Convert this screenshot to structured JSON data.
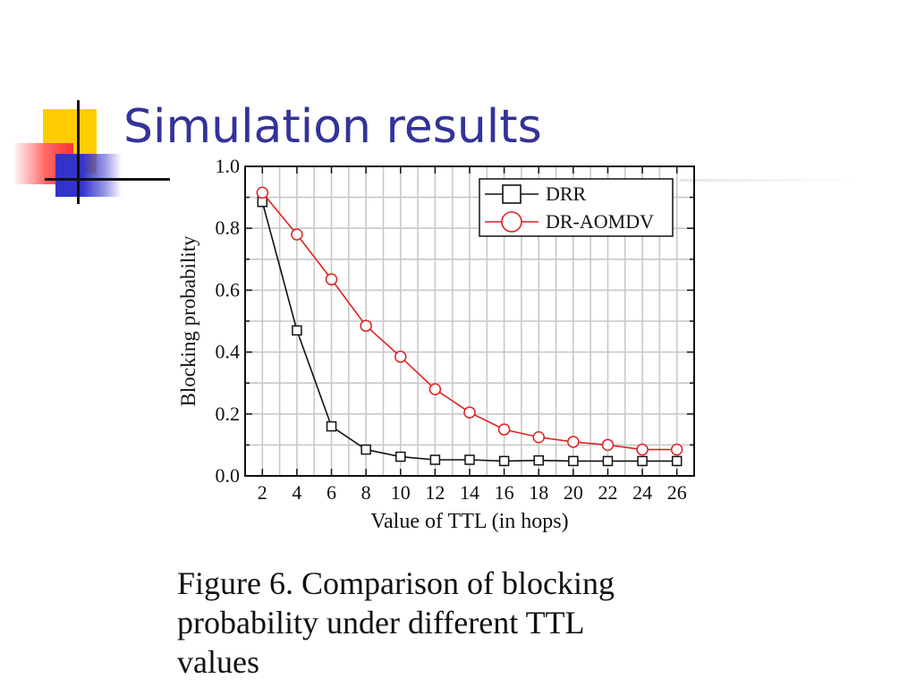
{
  "slide": {
    "title": "Simulation results",
    "caption_lines": [
      "Figure 6. Comparison of blocking",
      "probability under different TTL",
      "values"
    ]
  },
  "colors": {
    "title": "#333399",
    "accent_yellow": "#ffcc00",
    "accent_red": "#ff3333",
    "accent_blue": "#3333cc",
    "drr": "#111111",
    "dr_aomdv": "#e02020",
    "grid": "#c8c8c8"
  },
  "chart_data": {
    "type": "line",
    "title": "",
    "xlabel": "Value of TTL (in hops)",
    "ylabel": "Blocking probability",
    "x": [
      2,
      4,
      6,
      8,
      10,
      12,
      14,
      16,
      18,
      20,
      22,
      24,
      26
    ],
    "xlim": [
      1,
      27
    ],
    "ylim": [
      0.0,
      1.0
    ],
    "xticks": [
      "2",
      "4",
      "6",
      "8",
      "10",
      "12",
      "14",
      "16",
      "18",
      "20",
      "22",
      "24",
      "26"
    ],
    "yticks": [
      "0.0",
      "0.2",
      "0.4",
      "0.6",
      "0.8",
      "1.0"
    ],
    "grid": true,
    "legend_position": "top-right",
    "series": [
      {
        "name": "DRR",
        "marker": "square",
        "color": "#111111",
        "values": [
          0.885,
          0.47,
          0.16,
          0.085,
          0.062,
          0.052,
          0.052,
          0.048,
          0.05,
          0.048,
          0.048,
          0.048,
          0.048
        ]
      },
      {
        "name": "DR-AOMDV",
        "marker": "circle",
        "color": "#e02020",
        "values": [
          0.915,
          0.78,
          0.635,
          0.485,
          0.385,
          0.28,
          0.205,
          0.15,
          0.125,
          0.11,
          0.1,
          0.085,
          0.085
        ]
      }
    ]
  }
}
